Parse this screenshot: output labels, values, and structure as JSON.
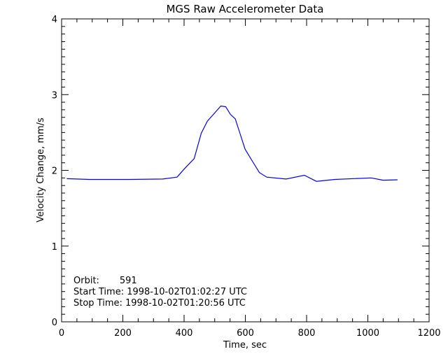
{
  "chart_data": {
    "type": "line",
    "title": "MGS Raw Accelerometer Data",
    "xlabel": "Time, sec",
    "ylabel": "Velocity Change, mm/s",
    "xlim": [
      0,
      1200
    ],
    "ylim": [
      0,
      4
    ],
    "xticks": [
      "0",
      "200",
      "400",
      "600",
      "800",
      "1000",
      "1200"
    ],
    "yticks": [
      "0",
      "1",
      "2",
      "3",
      "4"
    ],
    "grid": false,
    "series_color": "#0000ff",
    "x": [
      17,
      93,
      219,
      330,
      377,
      401,
      433,
      456,
      476,
      496,
      520,
      536,
      551,
      567,
      583,
      599,
      623,
      646,
      670,
      733,
      793,
      832,
      892,
      1011,
      1050,
      1097
    ],
    "y": [
      1.89,
      1.88,
      1.88,
      1.885,
      1.91,
      2.02,
      2.155,
      2.49,
      2.65,
      2.74,
      2.85,
      2.84,
      2.74,
      2.68,
      2.48,
      2.28,
      2.12,
      1.97,
      1.91,
      1.885,
      1.935,
      1.855,
      1.88,
      1.9,
      1.87,
      1.875
    ],
    "annotations": [
      "Orbit:       591",
      "Start Time: 1998-10-02T01:02:27 UTC",
      "Stop Time: 1998-10-02T01:20:56 UTC"
    ]
  }
}
